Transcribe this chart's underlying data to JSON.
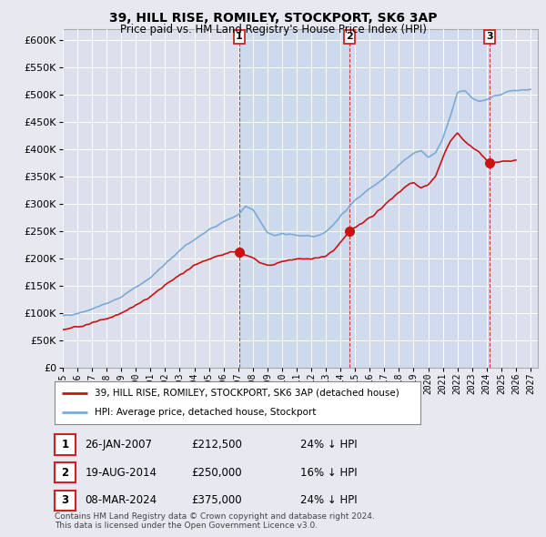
{
  "title1": "39, HILL RISE, ROMILEY, STOCKPORT, SK6 3AP",
  "title2": "Price paid vs. HM Land Registry's House Price Index (HPI)",
  "ylabel_vals": [
    0,
    50000,
    100000,
    150000,
    200000,
    250000,
    300000,
    350000,
    400000,
    450000,
    500000,
    550000,
    600000
  ],
  "xmin": 1995.0,
  "xmax": 2027.5,
  "ymin": 0,
  "ymax": 620000,
  "bg_color": "#e8e8f0",
  "plot_bg_color": "#dce0ec",
  "shade_color": "#c8d8ee",
  "grid_color": "#ffffff",
  "hpi_color": "#7aaad8",
  "price_color": "#cc1111",
  "sale_marker_color": "#cc2222",
  "legend_line1": "39, HILL RISE, ROMILEY, STOCKPORT, SK6 3AP (detached house)",
  "legend_line2": "HPI: Average price, detached house, Stockport",
  "transactions": [
    {
      "num": 1,
      "date": "26-JAN-2007",
      "price": 212500,
      "pct": "24%",
      "x": 2007.07
    },
    {
      "num": 2,
      "date": "19-AUG-2014",
      "price": 250000,
      "pct": "16%",
      "x": 2014.63
    },
    {
      "num": 3,
      "date": "08-MAR-2024",
      "price": 375000,
      "pct": "24%",
      "x": 2024.19
    }
  ],
  "footer": "Contains HM Land Registry data © Crown copyright and database right 2024.\nThis data is licensed under the Open Government Licence v3.0.",
  "xticks": [
    1995,
    1996,
    1997,
    1998,
    1999,
    2000,
    2001,
    2002,
    2003,
    2004,
    2005,
    2006,
    2007,
    2008,
    2009,
    2010,
    2011,
    2012,
    2013,
    2014,
    2015,
    2016,
    2017,
    2018,
    2019,
    2020,
    2021,
    2022,
    2023,
    2024,
    2025,
    2026,
    2027
  ]
}
